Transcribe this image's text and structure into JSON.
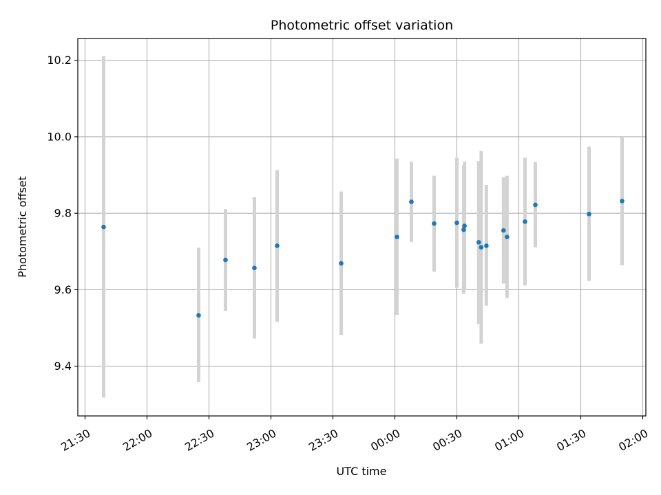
{
  "chart_data": {
    "type": "scatter",
    "title": "Photometric offset variation",
    "xlabel": "UTC time",
    "ylabel": "Photometric offset",
    "x_ticks": [
      {
        "t": -150,
        "label": "21:30"
      },
      {
        "t": -120,
        "label": "22:00"
      },
      {
        "t": -90,
        "label": "22:30"
      },
      {
        "t": -60,
        "label": "23:00"
      },
      {
        "t": -30,
        "label": "23:30"
      },
      {
        "t": 0,
        "label": "00:00"
      },
      {
        "t": 30,
        "label": "00:30"
      },
      {
        "t": 60,
        "label": "01:00"
      },
      {
        "t": 90,
        "label": "01:30"
      },
      {
        "t": 120,
        "label": "02:00"
      }
    ],
    "y_ticks": [
      {
        "v": 9.4,
        "label": "9.4"
      },
      {
        "v": 9.6,
        "label": "9.6"
      },
      {
        "v": 9.8,
        "label": "9.8"
      },
      {
        "v": 10.0,
        "label": "10.0"
      },
      {
        "v": 10.2,
        "label": "10.2"
      }
    ],
    "xlim": [
      -153.5,
      121.5
    ],
    "ylim": [
      9.27,
      10.257
    ],
    "grid": true,
    "point_color": "#1f77b4",
    "errorbar_color": "#d3d3d3",
    "points": [
      {
        "t": -141,
        "y": 9.764,
        "low": 9.318,
        "high": 10.211
      },
      {
        "t": -95,
        "y": 9.533,
        "low": 9.358,
        "high": 9.71
      },
      {
        "t": -82,
        "y": 9.678,
        "low": 9.545,
        "high": 9.811
      },
      {
        "t": -68,
        "y": 9.657,
        "low": 9.472,
        "high": 9.842
      },
      {
        "t": -57,
        "y": 9.715,
        "low": 9.516,
        "high": 9.913
      },
      {
        "t": -26,
        "y": 9.669,
        "low": 9.482,
        "high": 9.857
      },
      {
        "t": 1,
        "y": 9.738,
        "low": 9.534,
        "high": 9.943
      },
      {
        "t": 8,
        "y": 9.83,
        "low": 9.725,
        "high": 9.935
      },
      {
        "t": 19,
        "y": 9.773,
        "low": 9.647,
        "high": 9.898
      },
      {
        "t": 30,
        "y": 9.775,
        "low": 9.605,
        "high": 9.945
      },
      {
        "t": 33.7,
        "y": 9.767,
        "low": 9.599,
        "high": 9.935
      },
      {
        "t": 33.3,
        "y": 9.757,
        "low": 9.589,
        "high": 9.925
      },
      {
        "t": 40.6,
        "y": 9.724,
        "low": 9.511,
        "high": 9.937
      },
      {
        "t": 41.8,
        "y": 9.711,
        "low": 9.459,
        "high": 9.963
      },
      {
        "t": 44.3,
        "y": 9.715,
        "low": 9.558,
        "high": 9.874
      },
      {
        "t": 52.6,
        "y": 9.755,
        "low": 9.616,
        "high": 9.894
      },
      {
        "t": 54.3,
        "y": 9.738,
        "low": 9.578,
        "high": 9.898
      },
      {
        "t": 63,
        "y": 9.778,
        "low": 9.611,
        "high": 9.945
      },
      {
        "t": 68,
        "y": 9.822,
        "low": 9.711,
        "high": 9.934
      },
      {
        "t": 94,
        "y": 9.798,
        "low": 9.623,
        "high": 9.974
      },
      {
        "t": 110,
        "y": 9.832,
        "low": 9.664,
        "high": 10.0
      }
    ]
  }
}
